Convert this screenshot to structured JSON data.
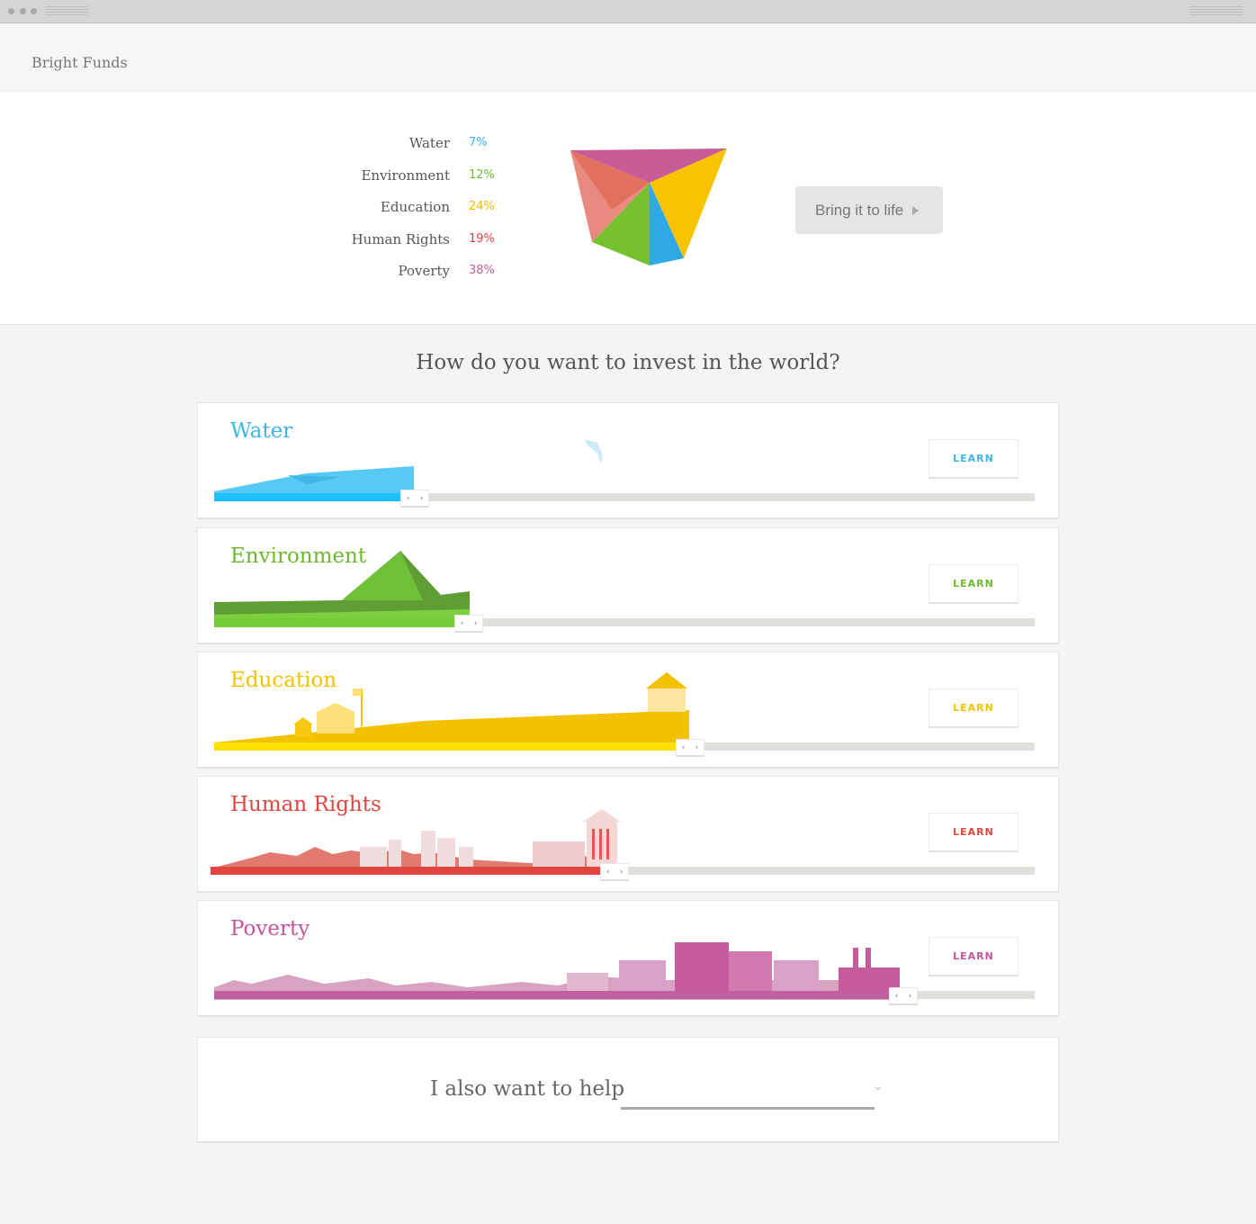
{
  "brand": "Bright Funds",
  "allocation": [
    {
      "label": "Water",
      "percent": "7%",
      "color": "#3ab0e8"
    },
    {
      "label": "Environment",
      "percent": "12%",
      "color": "#6dbe2e"
    },
    {
      "label": "Education",
      "percent": "24%",
      "color": "#f2b800"
    },
    {
      "label": "Human Rights",
      "percent": "19%",
      "color": "#e0453f"
    },
    {
      "label": "Poverty",
      "percent": "38%",
      "color": "#c25a9a"
    }
  ],
  "bring_button": "Bring it to life",
  "question": "How do you want to invest in the world?",
  "causes": [
    {
      "title": "Water",
      "learn": "LEARN",
      "color": "#3db5e6",
      "fill": "#1fc0ff",
      "slider_value": 0.245
    },
    {
      "title": "Environment",
      "learn": "LEARN",
      "color": "#6cb92e",
      "fill": "#74cc34",
      "slider_value": 0.31
    },
    {
      "title": "Education",
      "learn": "LEARN",
      "color": "#f2c200",
      "fill": "#ffe000",
      "slider_value": 0.58
    },
    {
      "title": "Human Rights",
      "learn": "LEARN",
      "color": "#e0453f",
      "fill": "#e0453f",
      "slider_value": 0.49
    },
    {
      "title": "Poverty",
      "learn": "LEARN",
      "color": "#c4559a",
      "fill": "#c25ea2",
      "slider_value": 0.84
    }
  ],
  "help": {
    "label": "I also want to help",
    "selected": ""
  },
  "handle_glyphs": {
    "left": "‹",
    "right": "›"
  }
}
